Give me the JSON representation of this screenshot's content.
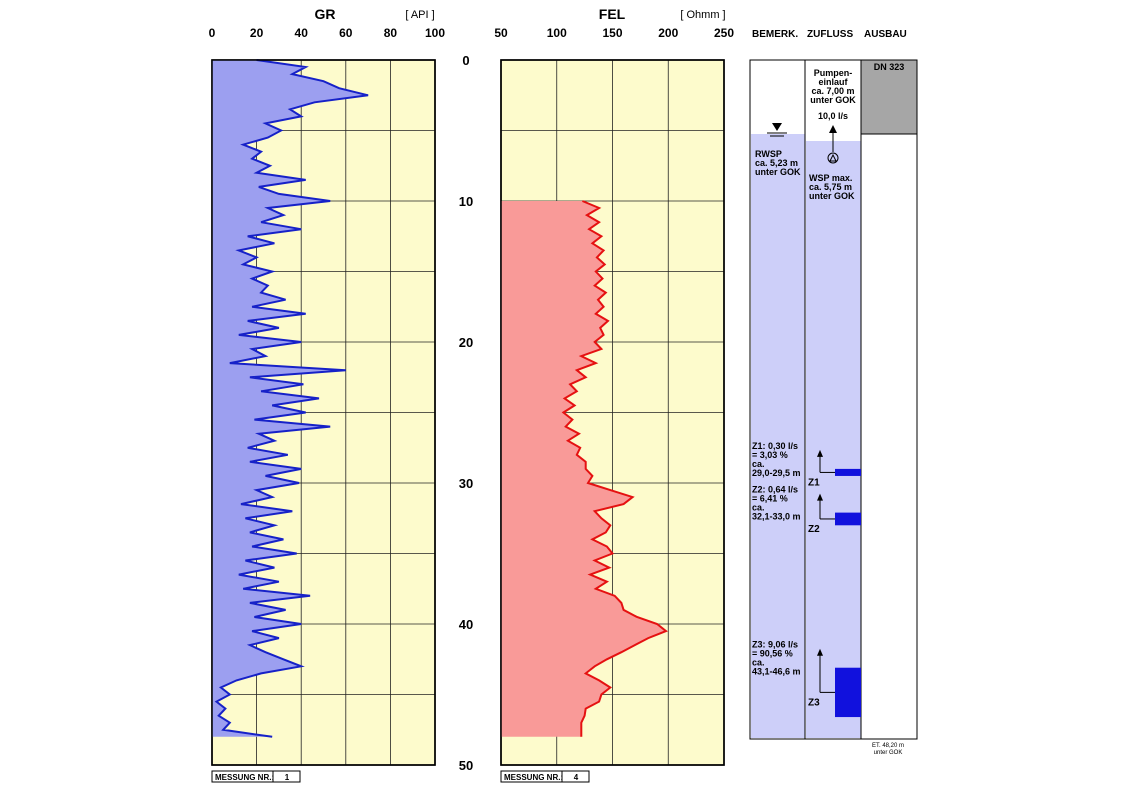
{
  "colors": {
    "track_bg": "#fdfbcc",
    "gr_fill": "#9c9ff0",
    "gr_line": "#1621c8",
    "fel_fill": "#f99a98",
    "fel_line": "#e51111",
    "well_bg": "#cdcff9",
    "casing": "#a6a6a6",
    "inflow": "#1111dd"
  },
  "depth_axis": {
    "ticks": [
      "0",
      "10",
      "20",
      "30",
      "40",
      "50"
    ],
    "ylim": [
      0,
      50
    ]
  },
  "right_panel": {
    "col_headers": {
      "bemerk": "BEMERK.",
      "zufluss": "ZUFLUSS",
      "ausbau": "AUSBAU"
    },
    "casing_label": "DN 323",
    "pump_label": [
      "Pumpen-",
      "einlauf",
      "ca. 7,00 m",
      "unter GOK"
    ],
    "pump_rate": "10,0 l/s",
    "rwsp_label": [
      "RWSP",
      "ca. 5,23 m",
      "unter GOK"
    ],
    "wsp_label": [
      "WSP max.",
      "ca. 5,75 m",
      "unter GOK"
    ],
    "inflows": [
      {
        "name": "Z1",
        "text": [
          "Z1: 0,30 l/s",
          "= 3,03 %",
          "ca.",
          "29,0-29,5 m"
        ],
        "top": 29.0,
        "bottom": 29.5
      },
      {
        "name": "Z2",
        "text": [
          "Z2: 0,64 l/s",
          "= 6,41 %",
          "ca.",
          "32,1-33,0 m"
        ],
        "top": 32.1,
        "bottom": 33.0
      },
      {
        "name": "Z3",
        "text": [
          "Z3: 9,06 l/s",
          "= 90,56 %",
          "ca.",
          "43,1-46,6 m"
        ],
        "top": 43.1,
        "bottom": 46.6
      }
    ],
    "end_depth_label": [
      "ET. 48,20 m",
      "unter GOK"
    ]
  },
  "chart_data": [
    {
      "type": "line",
      "title": "GR",
      "unit": "[ API ]",
      "xlim": [
        0,
        100
      ],
      "x_ticks": [
        "0",
        "20",
        "40",
        "60",
        "80",
        "100"
      ],
      "ylim": [
        0,
        50
      ],
      "y_label_orientation": "depth increasing downward",
      "grid": true,
      "fill": "left of curve",
      "measurement_label": "MESSUNG NR.:",
      "measurement_no": "1",
      "series": [
        {
          "depth": [
            0.0,
            0.5,
            1.0,
            1.5,
            2.0,
            2.5,
            3.0,
            3.5,
            4.0,
            4.5,
            5.0,
            5.5,
            6.0,
            6.5,
            7.0,
            7.5,
            8.0,
            8.5,
            9.0,
            9.5,
            10.0,
            10.5,
            11.0,
            11.5,
            12.0,
            12.5,
            13.0,
            13.5,
            14.0,
            14.5,
            15.0,
            15.5,
            16.0,
            16.5,
            17.0,
            17.5,
            18.0,
            18.5,
            19.0,
            19.5,
            20.0,
            20.5,
            21.0,
            21.5,
            22.0,
            22.5,
            23.0,
            23.5,
            24.0,
            24.5,
            25.0,
            25.5,
            26.0,
            26.5,
            27.0,
            27.5,
            28.0,
            28.5,
            29.0,
            29.5,
            30.0,
            30.5,
            31.0,
            31.5,
            32.0,
            32.5,
            33.0,
            33.5,
            34.0,
            34.5,
            35.0,
            35.5,
            36.0,
            36.5,
            37.0,
            37.5,
            38.0,
            38.5,
            39.0,
            39.5,
            40.0,
            40.5,
            41.0,
            41.5,
            42.0,
            42.5,
            43.0,
            43.5,
            44.0,
            44.5,
            45.0,
            45.5,
            46.0,
            46.5,
            47.0,
            47.5,
            48.0
          ],
          "values": [
            20,
            42,
            36,
            50,
            57,
            70,
            46,
            35,
            40,
            24,
            31,
            25,
            14,
            22,
            18,
            26,
            20,
            42,
            21,
            30,
            53,
            25,
            32,
            22,
            40,
            16,
            28,
            12,
            20,
            14,
            27,
            18,
            25,
            22,
            33,
            18,
            42,
            16,
            30,
            12,
            40,
            18,
            24,
            8,
            60,
            17,
            41,
            22,
            48,
            27,
            42,
            19,
            53,
            21,
            28,
            16,
            34,
            17,
            40,
            24,
            39,
            20,
            27,
            13,
            36,
            15,
            28,
            17,
            32,
            18,
            38,
            15,
            28,
            12,
            30,
            14,
            44,
            17,
            33,
            19,
            40,
            18,
            30,
            17,
            24,
            32,
            40,
            22,
            11,
            4,
            8,
            2,
            6,
            3,
            8,
            5,
            27
          ]
        }
      ]
    },
    {
      "type": "line",
      "title": "FEL",
      "unit": "[ Ohmm ]",
      "xlim": [
        50,
        250
      ],
      "x_ticks": [
        "50",
        "100",
        "150",
        "200",
        "250"
      ],
      "ylim": [
        0,
        50
      ],
      "grid": true,
      "fill": "left of curve",
      "measurement_label": "MESSUNG NR.:",
      "measurement_no": "4",
      "series": [
        {
          "depth": [
            10.0,
            10.5,
            11.0,
            11.5,
            12.0,
            12.5,
            13.0,
            13.5,
            14.0,
            14.5,
            15.0,
            15.5,
            16.0,
            16.5,
            17.0,
            17.5,
            18.0,
            18.5,
            19.0,
            19.5,
            20.0,
            20.5,
            21.0,
            21.5,
            22.0,
            22.5,
            23.0,
            23.5,
            24.0,
            24.5,
            25.0,
            25.5,
            26.0,
            26.5,
            27.0,
            27.5,
            28.0,
            28.5,
            29.0,
            29.5,
            30.0,
            30.5,
            31.0,
            31.5,
            32.0,
            32.5,
            33.0,
            33.5,
            34.0,
            34.5,
            35.0,
            35.5,
            36.0,
            36.5,
            37.0,
            37.5,
            38.0,
            38.5,
            39.0,
            39.5,
            40.0,
            40.5,
            41.0,
            41.5,
            42.0,
            42.5,
            43.0,
            43.5,
            44.0,
            44.5,
            45.0,
            45.5,
            46.0,
            46.5,
            47.0,
            47.5,
            48.0
          ],
          "values": [
            123,
            138,
            127,
            138,
            129,
            140,
            132,
            142,
            136,
            143,
            135,
            141,
            134,
            144,
            137,
            142,
            135,
            146,
            139,
            142,
            134,
            140,
            122,
            135,
            118,
            126,
            112,
            118,
            107,
            116,
            106,
            114,
            108,
            120,
            110,
            121,
            118,
            126,
            126,
            132,
            128,
            148,
            168,
            160,
            134,
            140,
            148,
            144,
            132,
            145,
            150,
            134,
            147,
            130,
            145,
            135,
            152,
            158,
            160,
            172,
            190,
            198,
            182,
            170,
            158,
            145,
            134,
            126,
            138,
            148,
            140,
            138,
            126,
            125,
            122,
            122,
            122
          ]
        }
      ]
    }
  ]
}
